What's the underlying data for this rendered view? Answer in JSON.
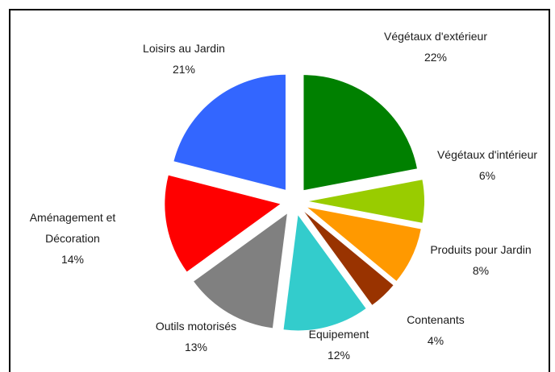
{
  "chart_data": {
    "type": "pie",
    "exploded": true,
    "slices": [
      {
        "label": "Végétaux d'extérieur",
        "value": 22,
        "value_label": "22%",
        "color": "#008000"
      },
      {
        "label": "Végétaux d'intérieur",
        "value": 6,
        "value_label": "6%",
        "color": "#99cc00"
      },
      {
        "label": "Produits pour Jardin",
        "value": 8,
        "value_label": "8%",
        "color": "#ff9900"
      },
      {
        "label": "Contenants",
        "value": 4,
        "value_label": "4%",
        "color": "#993300"
      },
      {
        "label": "Equipement",
        "value": 12,
        "value_label": "12%",
        "color": "#33cccc"
      },
      {
        "label": "Outils motorisés",
        "value": 13,
        "value_label": "13%",
        "color": "#808080"
      },
      {
        "label": "Aménagement et Décoration",
        "value": 14,
        "value_label": "14%",
        "color": "#ff0000"
      },
      {
        "label": "Loisirs au Jardin",
        "value": 21,
        "value_label": "21%",
        "color": "#3366ff"
      }
    ]
  }
}
